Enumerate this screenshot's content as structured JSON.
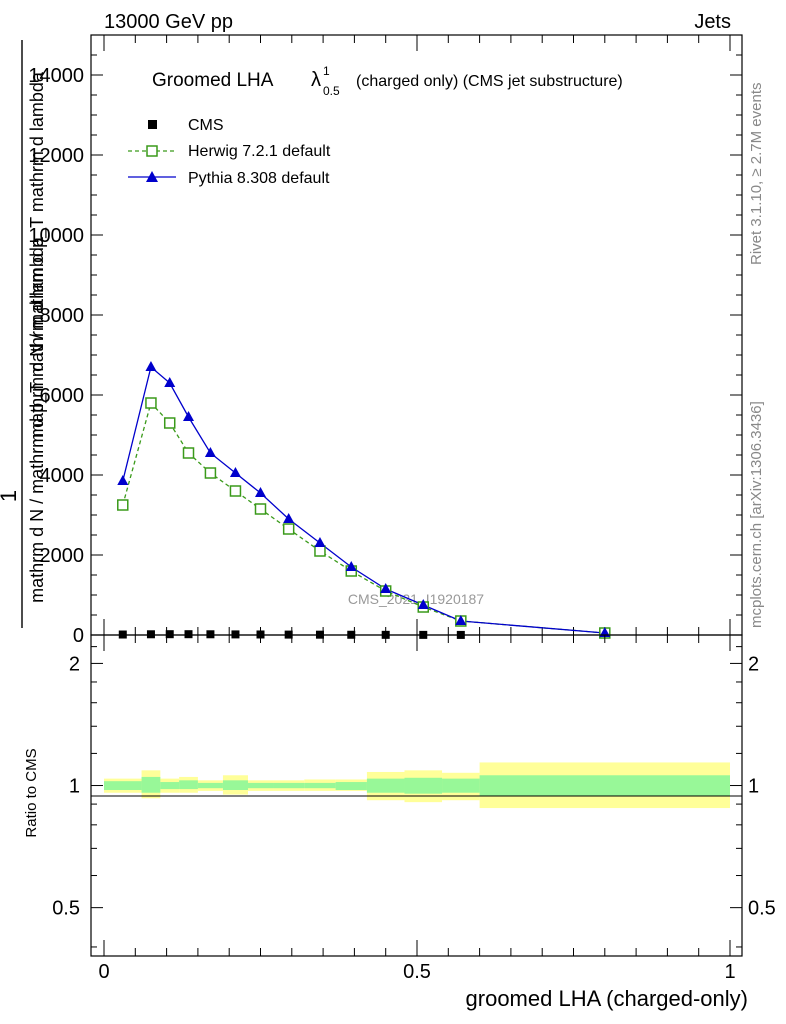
{
  "header": {
    "left": "13000 GeV pp",
    "right": "Jets"
  },
  "title": {
    "main": "Groomed LHA",
    "lambda": "λ",
    "sup": "1",
    "sub": "0.5",
    "rest": "(charged only) (CMS jet substructure)"
  },
  "side_labels": {
    "rivet": "Rivet 3.1.10, ≥ 2.7M events",
    "mcplots": "mcplots.cern.ch [arXiv:1306.3436]"
  },
  "watermark": "CMS_2021_I1920187",
  "main_ylabel": {
    "one": "1",
    "numerator": "mathrm d N / mathrm d p_T mathrm d lambda",
    "denominator": "mathrm d N / mathrm d p_T mathrm d lambda"
  },
  "ratio_ylabel": "Ratio to CMS",
  "xlabel": "groomed LHA (charged-only)",
  "colors": {
    "cms": "#000000",
    "herwig": "#3a9a1a",
    "pythia": "#0000cc",
    "band_inner": "#98f898",
    "band_outer": "#ffff99"
  },
  "chart_data": [
    {
      "type": "line",
      "panel": "main",
      "xlim": [
        0,
        1
      ],
      "ylim": [
        0,
        15000
      ],
      "xticks": [
        0,
        0.5,
        1
      ],
      "yticks": [
        0,
        2000,
        4000,
        6000,
        8000,
        10000,
        12000,
        14000
      ],
      "ytick_labels": [
        "0",
        "2000",
        "4000",
        "6000",
        "8000",
        "10000",
        "12000",
        "14000"
      ],
      "legend_position": "top-left",
      "series": [
        {
          "name": "CMS",
          "marker": "square",
          "x": [
            0.03,
            0.075,
            0.105,
            0.135,
            0.17,
            0.21,
            0.25,
            0.295,
            0.345,
            0.395,
            0.45,
            0.51,
            0.57
          ],
          "values": [
            12,
            18,
            20,
            20,
            18,
            15,
            13,
            10,
            8,
            6,
            4,
            3,
            2
          ]
        },
        {
          "name": "Herwig 7.2.1 default",
          "marker": "open-square",
          "x": [
            0.03,
            0.075,
            0.105,
            0.135,
            0.17,
            0.21,
            0.25,
            0.295,
            0.345,
            0.395,
            0.45,
            0.51,
            0.57,
            0.8
          ],
          "values": [
            3250,
            5800,
            5300,
            4550,
            4050,
            3600,
            3150,
            2650,
            2100,
            1600,
            1100,
            700,
            350,
            50
          ]
        },
        {
          "name": "Pythia 8.308 default",
          "marker": "triangle",
          "x": [
            0.03,
            0.075,
            0.105,
            0.135,
            0.17,
            0.21,
            0.25,
            0.295,
            0.345,
            0.395,
            0.45,
            0.51,
            0.57,
            0.8
          ],
          "values": [
            3850,
            6700,
            6300,
            5450,
            4550,
            4050,
            3550,
            2900,
            2300,
            1700,
            1150,
            750,
            350,
            50
          ]
        }
      ]
    },
    {
      "type": "area",
      "panel": "ratio",
      "xlim": [
        0,
        1
      ],
      "ylim": [
        0.38,
        2.35
      ],
      "log_y": true,
      "yticks": [
        0.5,
        1,
        2
      ],
      "ytick_labels": [
        "0.5",
        "1",
        "2"
      ],
      "xtick_labels": [
        "0",
        "0.5",
        "1"
      ],
      "bins": [
        {
          "lo": 0.0,
          "hi": 0.06,
          "stat": [
            0.975,
            1.025
          ],
          "total": [
            0.96,
            1.04
          ]
        },
        {
          "lo": 0.06,
          "hi": 0.09,
          "stat": [
            0.96,
            1.05
          ],
          "total": [
            0.93,
            1.09
          ]
        },
        {
          "lo": 0.09,
          "hi": 0.12,
          "stat": [
            0.98,
            1.02
          ],
          "total": [
            0.96,
            1.04
          ]
        },
        {
          "lo": 0.12,
          "hi": 0.15,
          "stat": [
            0.98,
            1.03
          ],
          "total": [
            0.96,
            1.05
          ]
        },
        {
          "lo": 0.15,
          "hi": 0.19,
          "stat": [
            0.985,
            1.015
          ],
          "total": [
            0.97,
            1.03
          ]
        },
        {
          "lo": 0.19,
          "hi": 0.23,
          "stat": [
            0.975,
            1.03
          ],
          "total": [
            0.95,
            1.06
          ]
        },
        {
          "lo": 0.23,
          "hi": 0.27,
          "stat": [
            0.985,
            1.015
          ],
          "total": [
            0.97,
            1.03
          ]
        },
        {
          "lo": 0.27,
          "hi": 0.32,
          "stat": [
            0.985,
            1.015
          ],
          "total": [
            0.97,
            1.03
          ]
        },
        {
          "lo": 0.32,
          "hi": 0.37,
          "stat": [
            0.985,
            1.015
          ],
          "total": [
            0.97,
            1.035
          ]
        },
        {
          "lo": 0.37,
          "hi": 0.42,
          "stat": [
            0.975,
            1.02
          ],
          "total": [
            0.97,
            1.035
          ]
        },
        {
          "lo": 0.42,
          "hi": 0.48,
          "stat": [
            0.96,
            1.04
          ],
          "total": [
            0.92,
            1.08
          ]
        },
        {
          "lo": 0.48,
          "hi": 0.54,
          "stat": [
            0.955,
            1.045
          ],
          "total": [
            0.91,
            1.09
          ]
        },
        {
          "lo": 0.54,
          "hi": 0.6,
          "stat": [
            0.96,
            1.04
          ],
          "total": [
            0.92,
            1.075
          ]
        },
        {
          "lo": 0.6,
          "hi": 1.0,
          "stat": [
            0.94,
            1.06
          ],
          "total": [
            0.88,
            1.14
          ]
        }
      ],
      "reference_line": 1
    }
  ]
}
